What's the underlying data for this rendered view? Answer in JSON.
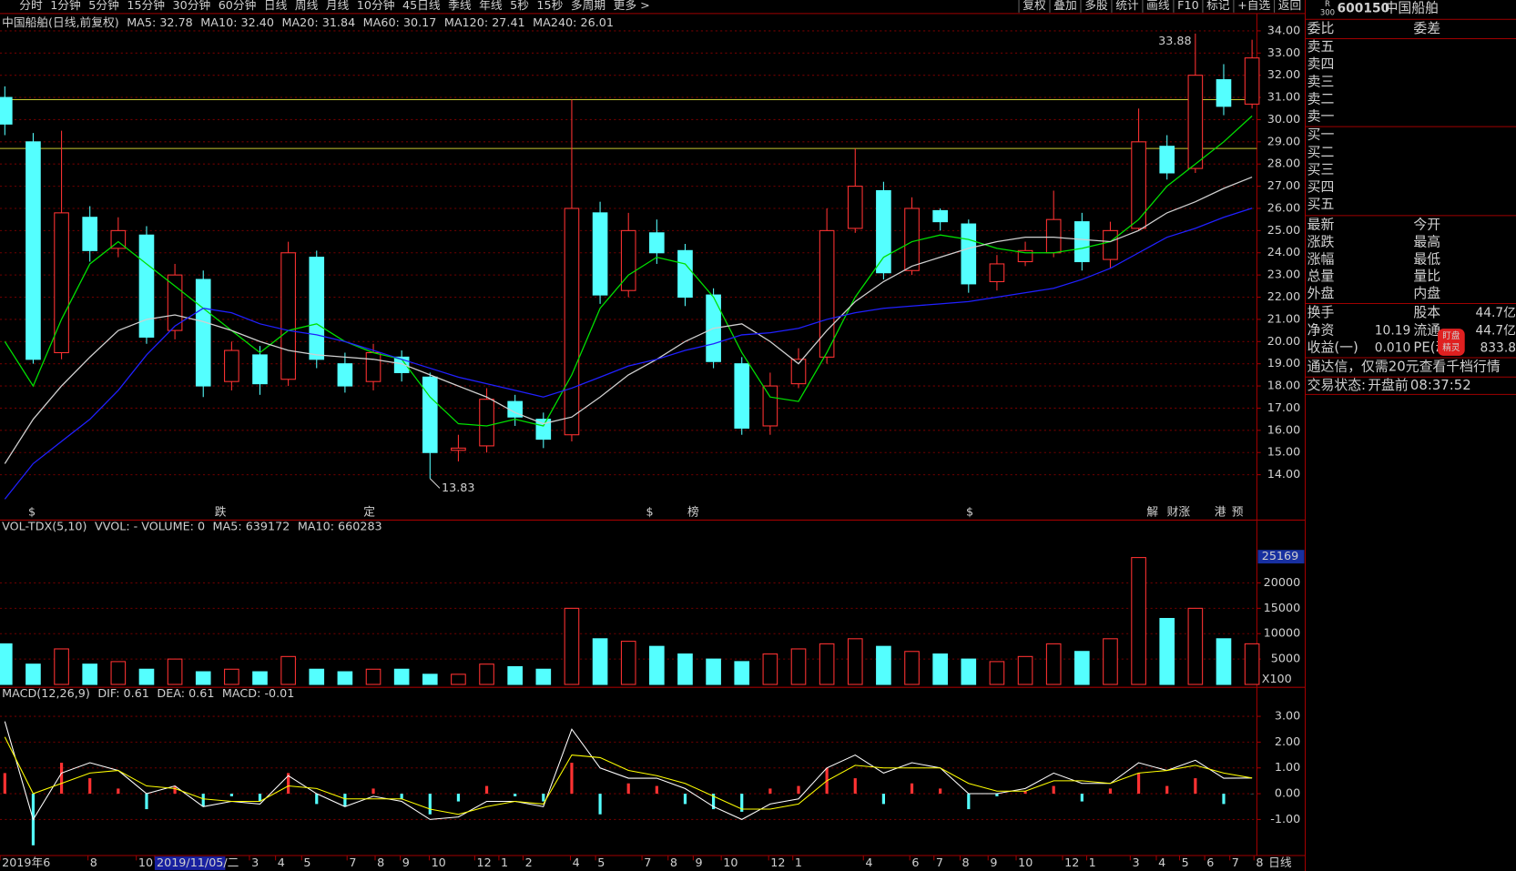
{
  "toolbar": {
    "periods": [
      "分时",
      "1分钟",
      "5分钟",
      "15分钟",
      "30分钟",
      "60分钟",
      "日线",
      "周线",
      "月线",
      "10分钟",
      "45日线",
      "季线",
      "年线",
      "5秒",
      "15秒",
      "多周期",
      "更多 >"
    ],
    "active_period": 6,
    "tools": [
      "复权",
      "叠加",
      "多股",
      "统计",
      "画线",
      "F10",
      "标记",
      "+自选",
      "返回"
    ]
  },
  "chart_data": [
    {
      "type": "candlestick",
      "title": "中国船舶(日线,前复权)",
      "legend": [
        {
          "text": "MA5: 32.78",
          "color": "#ffffff"
        },
        {
          "text": "MA10: 32.40",
          "color": "#ffff00"
        },
        {
          "text": "MA20: 31.84",
          "color": "#ff00ff"
        },
        {
          "text": "MA60: 30.17",
          "color": "#00e000"
        },
        {
          "text": "MA120: 27.41",
          "color": "#d0d0d0"
        },
        {
          "text": "MA240: 26.01",
          "color": "#2020ff"
        }
      ],
      "open": [
        31.0,
        29.0,
        19.5,
        25.6,
        24.2,
        24.8,
        20.5,
        22.8,
        18.2,
        19.4,
        18.3,
        23.8,
        19.0,
        18.2,
        19.3,
        18.4,
        15.1,
        15.3,
        17.3,
        16.5,
        15.8,
        25.8,
        22.3,
        24.9,
        24.1,
        22.1,
        19.0,
        16.2,
        18.1,
        19.3,
        25.1,
        26.8,
        23.2,
        25.9,
        25.3,
        22.7,
        23.6,
        24.0,
        25.4,
        23.7,
        25.1,
        28.8,
        27.8,
        31.8,
        30.7
      ],
      "high": [
        31.5,
        29.4,
        29.5,
        26.1,
        25.6,
        25.2,
        23.5,
        23.2,
        20.0,
        19.8,
        24.5,
        24.1,
        19.5,
        19.9,
        19.6,
        18.6,
        15.8,
        17.9,
        17.6,
        16.8,
        30.9,
        26.3,
        25.8,
        25.5,
        24.4,
        22.4,
        19.3,
        18.6,
        19.7,
        26.0,
        28.7,
        27.2,
        26.5,
        26.0,
        25.5,
        23.9,
        24.5,
        26.8,
        25.8,
        25.4,
        30.5,
        29.3,
        33.88,
        32.5,
        33.6
      ],
      "low": [
        29.3,
        19.0,
        19.2,
        23.6,
        23.8,
        19.9,
        20.1,
        17.5,
        17.8,
        17.6,
        18.0,
        18.8,
        17.7,
        17.8,
        18.2,
        13.83,
        14.6,
        15.0,
        16.2,
        15.2,
        15.5,
        21.7,
        22.0,
        23.5,
        21.6,
        18.8,
        15.8,
        15.8,
        17.9,
        19.0,
        24.9,
        22.8,
        23.0,
        25.0,
        22.2,
        22.3,
        23.4,
        23.8,
        23.2,
        23.3,
        25.0,
        27.3,
        27.6,
        30.2,
        30.5
      ],
      "close": [
        29.8,
        19.2,
        25.8,
        24.1,
        25.0,
        20.2,
        23.0,
        18.0,
        19.6,
        18.1,
        24.0,
        19.2,
        18.0,
        19.5,
        18.6,
        15.0,
        15.2,
        17.4,
        16.6,
        15.6,
        26.0,
        22.1,
        25.0,
        24.0,
        22.0,
        19.1,
        16.1,
        18.0,
        19.2,
        25.0,
        27.0,
        23.1,
        26.0,
        25.4,
        22.6,
        23.5,
        24.1,
        25.5,
        23.6,
        25.0,
        29.0,
        27.6,
        32.0,
        30.6,
        32.78
      ],
      "up_color": "#ff3232",
      "down_color": "#54ffff",
      "lines": [
        {
          "color": "#00e000",
          "values": [
            20,
            18,
            21,
            23.5,
            24.5,
            23.5,
            22.5,
            21.5,
            20.5,
            19.5,
            20.5,
            20.8,
            20.0,
            19.5,
            19.2,
            17.5,
            16.3,
            16.2,
            16.5,
            16.2,
            18.5,
            21.5,
            23.0,
            23.8,
            23.5,
            22.0,
            19.5,
            17.5,
            17.3,
            19.5,
            22.0,
            23.8,
            24.5,
            24.8,
            24.6,
            24.2,
            24.0,
            24.0,
            24.2,
            24.5,
            25.5,
            27.0,
            28.0,
            29.0,
            30.17
          ]
        },
        {
          "color": "#d0d0d0",
          "values": [
            14.5,
            16.5,
            18.0,
            19.3,
            20.5,
            21.0,
            21.2,
            20.9,
            20.5,
            20.0,
            19.6,
            19.4,
            19.3,
            19.2,
            19.0,
            18.5,
            18.0,
            17.5,
            16.8,
            16.3,
            16.6,
            17.5,
            18.5,
            19.2,
            20.0,
            20.6,
            20.8,
            20.0,
            19.0,
            20.5,
            21.8,
            22.7,
            23.4,
            23.8,
            24.2,
            24.5,
            24.7,
            24.7,
            24.6,
            24.5,
            25.0,
            25.8,
            26.3,
            26.9,
            27.41
          ]
        },
        {
          "color": "#2020ff",
          "values": [
            12.9,
            14.5,
            15.5,
            16.5,
            17.8,
            19.4,
            20.7,
            21.5,
            21.3,
            20.8,
            20.5,
            20.3,
            20.0,
            19.6,
            19.2,
            18.8,
            18.4,
            18.1,
            17.8,
            17.5,
            17.9,
            18.4,
            18.9,
            19.2,
            19.6,
            19.9,
            20.3,
            20.4,
            20.6,
            21.0,
            21.3,
            21.5,
            21.6,
            21.7,
            21.8,
            22.0,
            22.2,
            22.4,
            22.8,
            23.3,
            24.0,
            24.7,
            25.1,
            25.6,
            26.01
          ]
        }
      ],
      "hlines": {
        "color": "#c8c832",
        "values": [
          30.9,
          28.7
        ]
      },
      "markers": [
        {
          "text": "$",
          "color": "#ff3232"
        },
        {
          "text": "跌",
          "color": "#00e000"
        },
        {
          "text": "定",
          "color": "#ff9030"
        },
        {
          "text": "$",
          "color": "#ff3232"
        },
        {
          "text": "榜",
          "color": "#ffb040"
        },
        {
          "text": "$",
          "color": "#ff3232"
        },
        {
          "text": "解",
          "color": "#40c0ff"
        },
        {
          "text": "财",
          "color": "#4080ff"
        },
        {
          "text": "涨",
          "color": "#ff5050"
        },
        {
          "text": "港",
          "color": "#00e000"
        },
        {
          "text": "预",
          "color": "#ff9030"
        }
      ],
      "ylim": [
        12,
        34.65
      ],
      "yticks": [
        {
          "value": 14,
          "label": "14.00"
        },
        {
          "value": 15,
          "label": "15.00"
        },
        {
          "value": 16,
          "label": "16.00"
        },
        {
          "value": 17,
          "label": "17.00"
        },
        {
          "value": 18,
          "label": "18.00"
        },
        {
          "value": 19,
          "label": "19.00"
        },
        {
          "value": 20,
          "label": "20.00"
        },
        {
          "value": 21,
          "label": "21.00"
        },
        {
          "value": 22,
          "label": "22.00"
        },
        {
          "value": 23,
          "label": "23.00"
        },
        {
          "value": 24,
          "label": "24.00"
        },
        {
          "value": 25,
          "label": "25.00"
        },
        {
          "value": 26,
          "label": "26.00"
        },
        {
          "value": 27,
          "label": "27.00"
        },
        {
          "value": 28,
          "label": "28.00"
        },
        {
          "value": 29,
          "label": "29.00"
        },
        {
          "value": 30,
          "label": "30.00"
        },
        {
          "value": 31,
          "label": "31.00"
        },
        {
          "value": 32,
          "label": "32.00"
        },
        {
          "value": 33,
          "label": "33.00"
        },
        {
          "value": 34,
          "label": "34.00"
        }
      ],
      "grid": true
    },
    {
      "type": "bar",
      "title": "VOL-TDX(5,10)",
      "legend": [
        {
          "text": "VVOL: - VOLUME: 0",
          "color": "#ffffff"
        },
        {
          "text": "MA5: 639172",
          "color": "#ffff00"
        },
        {
          "text": "MA10: 660283",
          "color": "#ff00ff"
        }
      ],
      "values": [
        8000,
        4000,
        7000,
        4000,
        4500,
        3000,
        5000,
        2500,
        3000,
        2500,
        5500,
        3000,
        2500,
        3000,
        3000,
        2000,
        2000,
        4000,
        3500,
        3000,
        15000,
        9000,
        8500,
        7500,
        6000,
        5000,
        4500,
        6000,
        7000,
        8000,
        9000,
        7500,
        6500,
        6000,
        5000,
        4500,
        5500,
        8000,
        6500,
        9000,
        25000,
        13000,
        15000,
        9000,
        8000
      ],
      "ylim": [
        0,
        32000
      ],
      "yticks": [
        5000,
        10000,
        15000,
        20000
      ],
      "max_label": 25169,
      "unit_label": "X100",
      "grid": true
    },
    {
      "type": "macd",
      "title": "MACD(12,26,9)",
      "legend": [
        {
          "text": "DIF: 0.61",
          "color": "#ffffff"
        },
        {
          "text": "DEA: 0.61",
          "color": "#ffff00"
        },
        {
          "text": "MACD: -0.01",
          "color": "#ff00ff"
        }
      ],
      "values": [
        0.8,
        -2.0,
        1.2,
        0.6,
        0.2,
        -0.6,
        0.3,
        -0.5,
        -0.1,
        -0.3,
        0.8,
        -0.4,
        -0.5,
        0.2,
        -0.2,
        -0.8,
        -0.3,
        0.3,
        -0.1,
        -0.3,
        1.2,
        -0.8,
        0.4,
        0.3,
        -0.4,
        -0.6,
        -0.7,
        0.2,
        0.3,
        1.0,
        0.6,
        -0.4,
        0.4,
        0.2,
        -0.6,
        -0.1,
        0.1,
        0.3,
        -0.3,
        0.2,
        0.8,
        0.3,
        0.6,
        -0.4,
        -0.01
      ],
      "dif": [
        2.8,
        -1.0,
        0.8,
        1.2,
        0.9,
        0.0,
        0.3,
        -0.5,
        -0.3,
        -0.4,
        0.7,
        0.0,
        -0.5,
        -0.1,
        -0.3,
        -1.0,
        -0.9,
        -0.3,
        -0.3,
        -0.5,
        2.5,
        1.0,
        0.6,
        0.6,
        0.2,
        -0.5,
        -1.0,
        -0.4,
        -0.2,
        1.0,
        1.5,
        0.8,
        1.2,
        1.0,
        0.0,
        0.0,
        0.2,
        0.8,
        0.4,
        0.4,
        1.2,
        0.9,
        1.3,
        0.6,
        0.61
      ],
      "dea": [
        2.2,
        0.0,
        0.4,
        0.8,
        0.9,
        0.3,
        0.2,
        -0.2,
        -0.3,
        -0.3,
        0.3,
        0.2,
        -0.2,
        -0.2,
        -0.2,
        -0.6,
        -0.8,
        -0.5,
        -0.3,
        -0.4,
        1.5,
        1.4,
        0.9,
        0.7,
        0.4,
        -0.1,
        -0.6,
        -0.6,
        -0.4,
        0.5,
        1.1,
        1.0,
        1.0,
        1.0,
        0.4,
        0.1,
        0.1,
        0.5,
        0.5,
        0.4,
        0.8,
        0.9,
        1.1,
        0.8,
        0.61
      ],
      "dif_color": "#ffffff",
      "dea_color": "#ffff00",
      "up_color": "#ff3232",
      "down_color": "#54ffff",
      "ylim": [
        -2.36,
        4.05
      ],
      "yticks": [
        {
          "value": -1,
          "label": "-1.00"
        },
        {
          "value": 0,
          "label": "0.00"
        },
        {
          "value": 1,
          "label": "1.00"
        },
        {
          "value": 2,
          "label": "2.00"
        },
        {
          "value": 3,
          "label": "3.00"
        }
      ],
      "grid": true
    }
  ],
  "x_axis": {
    "labels": [
      "2019年6",
      "8",
      "10",
      "2019/11/05/二",
      "3",
      "4",
      "5",
      "7",
      "8",
      "9",
      "10",
      "12",
      "1",
      "2",
      "4",
      "5",
      "7",
      "8",
      "9",
      "10",
      "12",
      "1",
      "4",
      "6",
      "7",
      "8",
      "9",
      "10",
      "12",
      "1",
      "3",
      "4",
      "5",
      "6",
      "7",
      "8"
    ],
    "highlight": 3,
    "period": "日线"
  },
  "quote_panel": {
    "tag": [
      "R",
      "300"
    ],
    "code": "600150",
    "name": "中国船舶",
    "header": [
      "委比",
      "委差"
    ],
    "asks": [
      "卖五",
      "卖四",
      "卖三",
      "卖二",
      "卖一"
    ],
    "bids": [
      "买一",
      "买二",
      "买三",
      "买四",
      "买五"
    ],
    "stats": [
      [
        "最新",
        "今开"
      ],
      [
        "涨跌",
        "最高"
      ],
      [
        "涨幅",
        "最低"
      ],
      [
        "总量",
        "量比"
      ],
      [
        "外盘",
        "内盘"
      ]
    ],
    "fundamentals": [
      {
        "label": "换手",
        "label2": "股本",
        "value2": "44.7亿"
      },
      {
        "label": "净资",
        "value": 10.19,
        "label2": "流通",
        "value2": "44.7亿"
      },
      {
        "label": "收益(一)",
        "value": "0.010",
        "label2": "PE(动)",
        "value2": 833.8
      }
    ],
    "promo": [
      "通达信，仅需",
      "20",
      "元查看千档行情"
    ],
    "status": {
      "label": "交易状态:",
      "state": "开盘前",
      "time": "08:37:52"
    },
    "badge": [
      "盯盘",
      "精灵"
    ]
  }
}
